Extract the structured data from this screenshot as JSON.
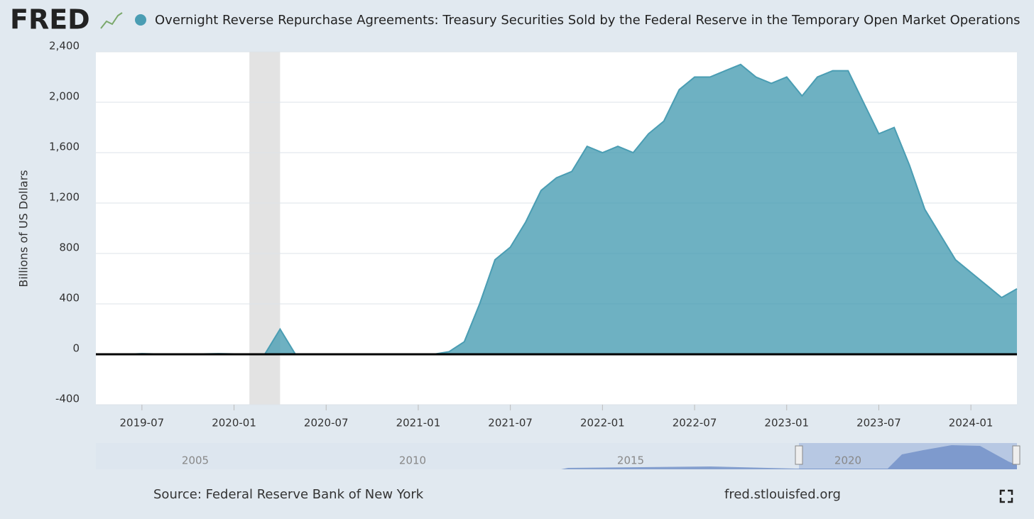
{
  "logo": "FRED",
  "chart_data": {
    "type": "area",
    "y_label": "Billions of US Dollars",
    "x": [
      "2019-04",
      "2019-05",
      "2019-06",
      "2019-07",
      "2019-08",
      "2019-09",
      "2019-10",
      "2019-11",
      "2019-12",
      "2020-01",
      "2020-02",
      "2020-03",
      "2020-04",
      "2020-05",
      "2020-06",
      "2020-07",
      "2020-08",
      "2020-09",
      "2020-10",
      "2020-11",
      "2020-12",
      "2021-01",
      "2021-02",
      "2021-03",
      "2021-04",
      "2021-05",
      "2021-06",
      "2021-07",
      "2021-08",
      "2021-09",
      "2021-10",
      "2021-11",
      "2021-12",
      "2022-01",
      "2022-02",
      "2022-03",
      "2022-04",
      "2022-05",
      "2022-06",
      "2022-07",
      "2022-08",
      "2022-09",
      "2022-10",
      "2022-11",
      "2022-12",
      "2023-01",
      "2023-02",
      "2023-03",
      "2023-04",
      "2023-05",
      "2023-06",
      "2023-07",
      "2023-08",
      "2023-09",
      "2023-10",
      "2023-11",
      "2023-12",
      "2024-01",
      "2024-02",
      "2024-03",
      "2024-04"
    ],
    "series": [
      {
        "name": "Overnight Reverse Repurchase Agreements: Treasury Securities Sold by the Federal Reserve in the Temporary Open Market Operations",
        "color": "#4a9db3",
        "values": [
          0,
          0,
          0,
          5,
          2,
          3,
          2,
          3,
          5,
          3,
          2,
          0,
          200,
          0,
          0,
          0,
          0,
          0,
          0,
          0,
          0,
          0,
          0,
          20,
          100,
          400,
          750,
          850,
          1050,
          1300,
          1400,
          1450,
          1650,
          1600,
          1650,
          1600,
          1750,
          1850,
          2100,
          2200,
          2200,
          2250,
          2300,
          2200,
          2150,
          2200,
          2050,
          2200,
          2250,
          2250,
          2000,
          1750,
          1800,
          1500,
          1150,
          950,
          750,
          650,
          550,
          450,
          520
        ]
      }
    ],
    "xlim": [
      "2019-04",
      "2024-04"
    ],
    "xticks": [
      "2019-07",
      "2020-01",
      "2020-07",
      "2021-01",
      "2021-07",
      "2022-01",
      "2022-07",
      "2023-01",
      "2023-07",
      "2024-01"
    ],
    "ylim": [
      -400,
      2400
    ],
    "yticks": [
      -400,
      0,
      400,
      800,
      {
        "value": 1200,
        "label": "1,200"
      },
      {
        "value": 1600,
        "label": "1,600"
      },
      {
        "value": 2000,
        "label": "2,000"
      },
      {
        "value": 2400,
        "label": "2,400"
      }
    ],
    "grid": true,
    "recession": [
      "2020-02",
      "2020-04"
    ]
  },
  "navigator_labels": [
    "2005",
    "2010",
    "2015",
    "2020"
  ],
  "source": "Source: Federal Reserve Bank of New York",
  "site": "fred.stlouisfed.org"
}
